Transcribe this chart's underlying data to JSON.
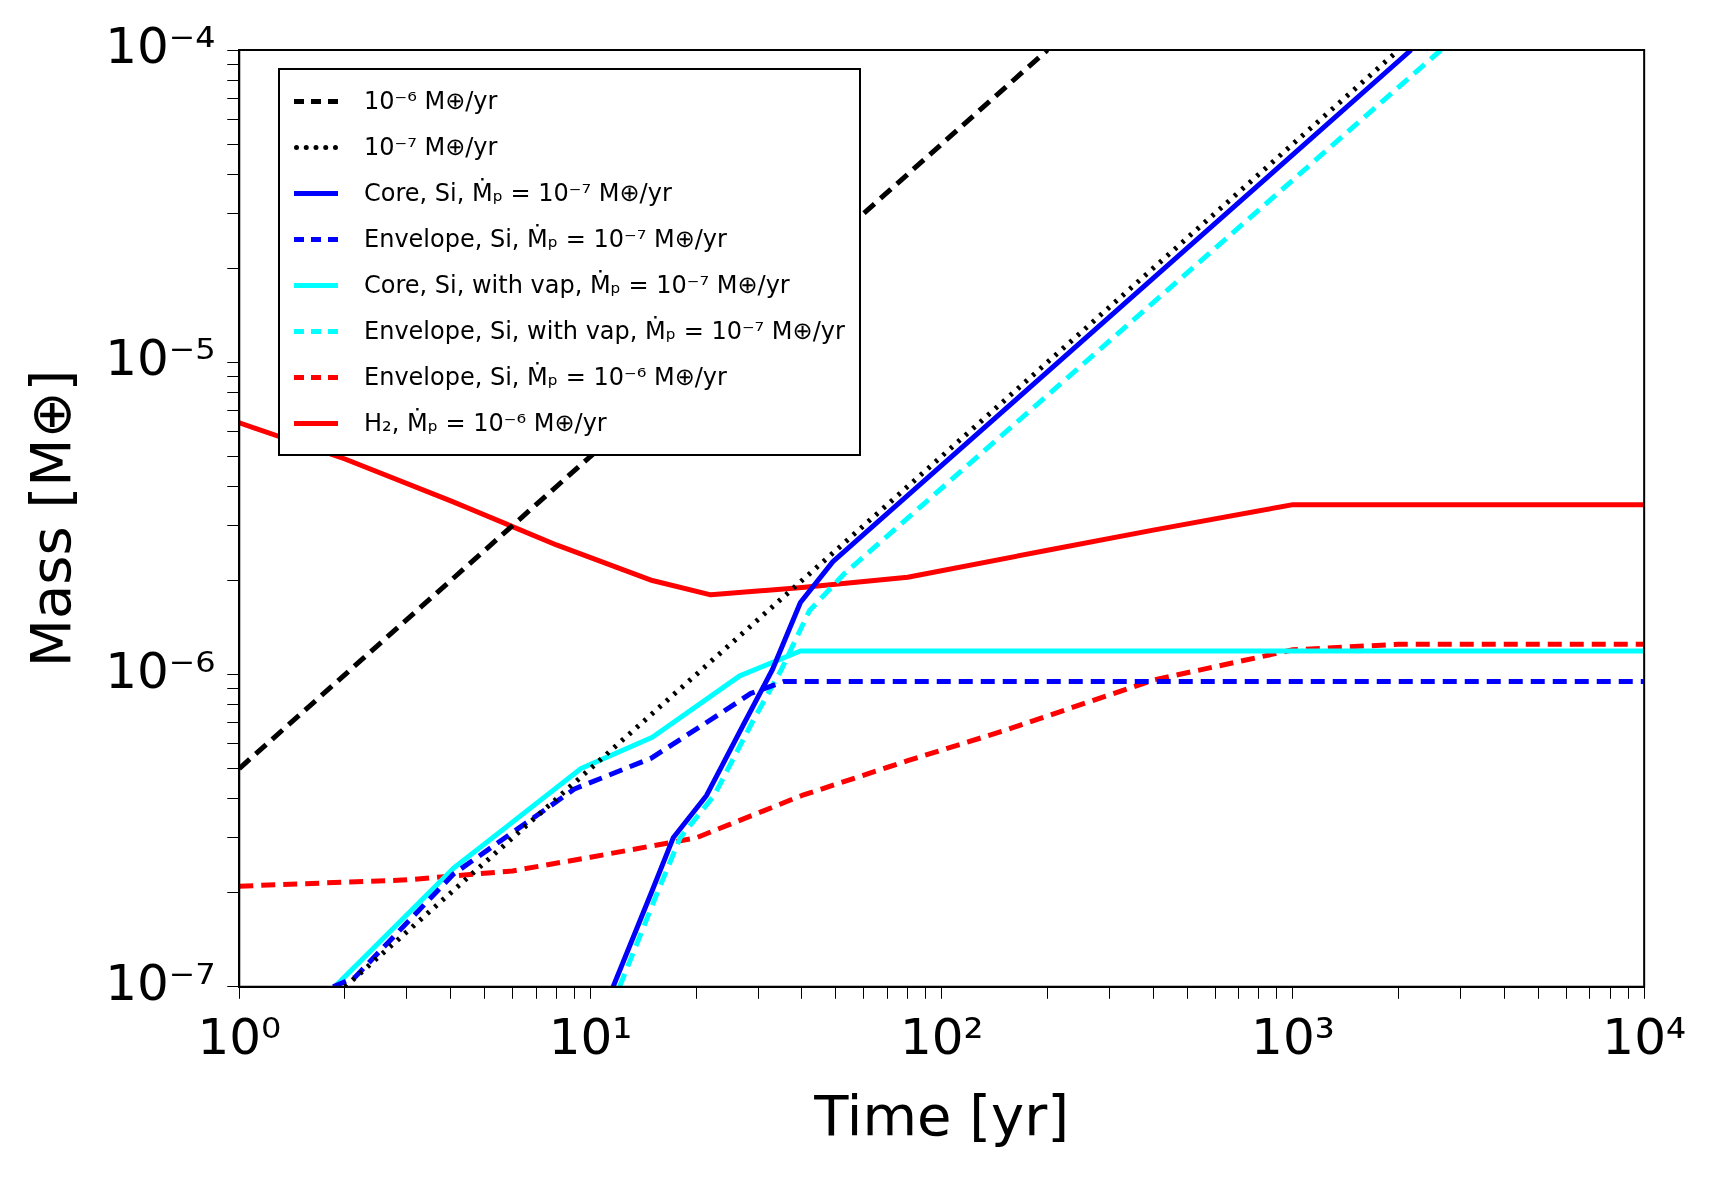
{
  "chart_data": {
    "type": "line",
    "xlabel": "Time [yr]",
    "ylabel": "Mass [M⊕]",
    "log": "xy",
    "grid": false,
    "legend": "top left",
    "marker": "none",
    "xlim": [
      1,
      10000
    ],
    "ylim": [
      1e-07,
      0.0001
    ],
    "xticks": [
      {
        "value": 1,
        "label": "10⁰"
      },
      {
        "value": 2,
        "label": null
      },
      {
        "value": 3,
        "label": null
      },
      {
        "value": 4,
        "label": null
      },
      {
        "value": 5,
        "label": null
      },
      {
        "value": 6,
        "label": null
      },
      {
        "value": 7,
        "label": null
      },
      {
        "value": 8,
        "label": null
      },
      {
        "value": 9,
        "label": null
      },
      {
        "value": 10,
        "label": "10¹"
      },
      {
        "value": 20,
        "label": null
      },
      {
        "value": 30,
        "label": null
      },
      {
        "value": 40,
        "label": null
      },
      {
        "value": 50,
        "label": null
      },
      {
        "value": 60,
        "label": null
      },
      {
        "value": 70,
        "label": null
      },
      {
        "value": 80,
        "label": null
      },
      {
        "value": 90,
        "label": null
      },
      {
        "value": 100,
        "label": "10²"
      },
      {
        "value": 200,
        "label": null
      },
      {
        "value": 300,
        "label": null
      },
      {
        "value": 400,
        "label": null
      },
      {
        "value": 500,
        "label": null
      },
      {
        "value": 600,
        "label": null
      },
      {
        "value": 700,
        "label": null
      },
      {
        "value": 800,
        "label": null
      },
      {
        "value": 900,
        "label": null
      },
      {
        "value": 1000,
        "label": "10³"
      },
      {
        "value": 2000,
        "label": null
      },
      {
        "value": 3000,
        "label": null
      },
      {
        "value": 4000,
        "label": null
      },
      {
        "value": 5000,
        "label": null
      },
      {
        "value": 6000,
        "label": null
      },
      {
        "value": 7000,
        "label": null
      },
      {
        "value": 8000,
        "label": null
      },
      {
        "value": 9000,
        "label": null
      },
      {
        "value": 10000,
        "label": "10⁴"
      }
    ],
    "yticks": [
      {
        "value": 1e-07,
        "label": "10⁻⁷"
      },
      {
        "value": 2e-07,
        "label": null
      },
      {
        "value": 3e-07,
        "label": null
      },
      {
        "value": 4e-07,
        "label": null
      },
      {
        "value": 5e-07,
        "label": null
      },
      {
        "value": 6e-07,
        "label": null
      },
      {
        "value": 7e-07,
        "label": null
      },
      {
        "value": 8e-07,
        "label": null
      },
      {
        "value": 9e-07,
        "label": null
      },
      {
        "value": 1e-06,
        "label": "10⁻⁶"
      },
      {
        "value": 2e-06,
        "label": null
      },
      {
        "value": 3e-06,
        "label": null
      },
      {
        "value": 4e-06,
        "label": null
      },
      {
        "value": 5e-06,
        "label": null
      },
      {
        "value": 6e-06,
        "label": null
      },
      {
        "value": 7e-06,
        "label": null
      },
      {
        "value": 8e-06,
        "label": null
      },
      {
        "value": 9e-06,
        "label": null
      },
      {
        "value": 1e-05,
        "label": "10⁻⁵"
      },
      {
        "value": 2e-05,
        "label": null
      },
      {
        "value": 3e-05,
        "label": null
      },
      {
        "value": 4e-05,
        "label": null
      },
      {
        "value": 5e-05,
        "label": null
      },
      {
        "value": 6e-05,
        "label": null
      },
      {
        "value": 7e-05,
        "label": null
      },
      {
        "value": 8e-05,
        "label": null
      },
      {
        "value": 9e-05,
        "label": null
      },
      {
        "value": 0.0001,
        "label": "10⁻⁴"
      }
    ],
    "series": [
      {
        "name": "10⁻⁶ M⊕/yr",
        "color": "#000000",
        "line_style": "dashed",
        "x": [
          1,
          200
        ],
        "values": [
          5e-07,
          0.0001
        ]
      },
      {
        "name": "10⁻⁷ M⊕/yr",
        "color": "#000000",
        "line_style": "dotted",
        "x": [
          2,
          2000
        ],
        "values": [
          1e-07,
          0.0001
        ]
      },
      {
        "name": "Core, Si, Ṁₚ = 10⁻⁷ M⊕/yr",
        "color": "#0000ff",
        "line_style": "solid",
        "x": [
          11.6,
          14.9,
          17.2,
          21.4,
          27.6,
          33,
          39.6,
          49,
          2170
        ],
        "values": [
          1e-07,
          2e-07,
          3e-07,
          4.1e-07,
          7.1e-07,
          1.04e-06,
          1.7e-06,
          2.3e-06,
          0.0001
        ]
      },
      {
        "name": "Envelope, Si, Ṁₚ = 10⁻⁷ M⊕/yr",
        "color": "#0000ff",
        "line_style": "dashed",
        "x": [
          1.85,
          2.13,
          4.08,
          9,
          14.9,
          23,
          28.6,
          35.5,
          10000
        ],
        "values": [
          1e-07,
          1.07e-07,
          2.3e-07,
          4.3e-07,
          5.4e-07,
          7.4e-07,
          8.7e-07,
          9.5e-07,
          9.5e-07
        ]
      },
      {
        "name": "Core, Si, with vap, Ṁₚ = 10⁻⁷ M⊕/yr",
        "color": "#00ffff",
        "line_style": "solid",
        "x": [
          1.87,
          4.08,
          9.4,
          15,
          26.6,
          39.6,
          10000
        ],
        "values": [
          1e-07,
          2.4e-07,
          5e-07,
          6.3e-07,
          9.9e-07,
          1.19e-06,
          1.19e-06
        ]
      },
      {
        "name": "Envelope, Si, with vap, Ṁₚ = 10⁻⁷ M⊕/yr",
        "color": "#00ffff",
        "line_style": "dashed",
        "x": [
          12.1,
          15.5,
          18,
          22.5,
          29,
          35,
          42,
          52.7,
          2640
        ],
        "values": [
          1e-07,
          2e-07,
          3e-07,
          4.1e-07,
          7.1e-07,
          1.04e-06,
          1.6e-06,
          2.1e-06,
          0.0001
        ]
      },
      {
        "name": "Envelope, Si, Ṁₚ = 10⁻⁶ M⊕/yr",
        "color": "#ff0000",
        "line_style": "dashed",
        "x": [
          1,
          3,
          6,
          10,
          20,
          40,
          80,
          150,
          400,
          1000,
          2000,
          10000
        ],
        "values": [
          2.1e-07,
          2.2e-07,
          2.35e-07,
          2.6e-07,
          3e-07,
          4.1e-07,
          5.3e-07,
          6.6e-07,
          9.6e-07,
          1.2e-06,
          1.25e-06,
          1.25e-06
        ]
      },
      {
        "name": "H₂, Ṁₚ = 10⁻⁶ M⊕/yr",
        "color": "#ff0000",
        "line_style": "solid",
        "x": [
          1,
          2,
          4,
          8,
          15,
          22,
          40,
          80,
          200,
          400,
          1000,
          10000
        ],
        "values": [
          6.4e-06,
          4.9e-06,
          3.6e-06,
          2.6e-06,
          2e-06,
          1.8e-06,
          1.9e-06,
          2.05e-06,
          2.5e-06,
          2.9e-06,
          3.5e-06,
          3.5e-06
        ]
      }
    ]
  }
}
